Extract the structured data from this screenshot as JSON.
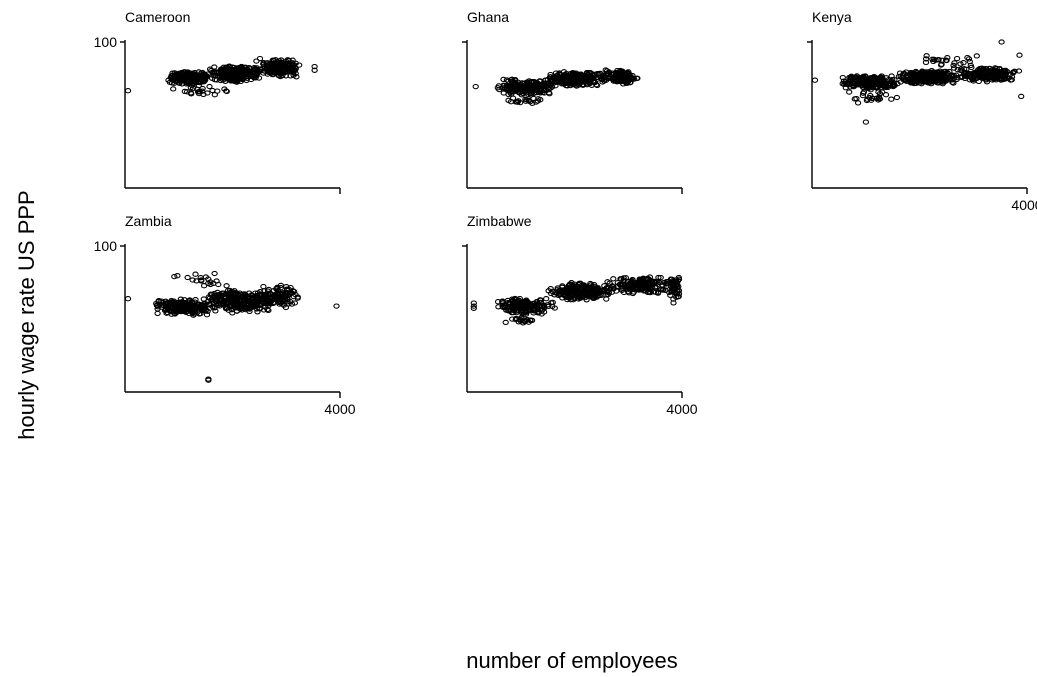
{
  "chart_data": {
    "type": "scatter",
    "xlabel": "number of employees",
    "ylabel": "hourly wage rate US PPP",
    "grid": false,
    "x_scale": "log",
    "y_scale": "log",
    "xlim": [
      1,
      4000
    ],
    "ylim": [
      1,
      100
    ],
    "panels": [
      {
        "title": "Cameroon",
        "y_tick_labels": [
          "100"
        ],
        "x_tick_labels": [],
        "outliers": [
          [
            1.1,
            21.5
          ],
          [
            1500,
            46
          ],
          [
            1500,
            41
          ]
        ],
        "clusters": [
          {
            "x": [
              5,
              30
            ],
            "y": [
              26,
              40
            ],
            "n": 220
          },
          {
            "x": [
              25,
              200
            ],
            "y": [
              28,
              48
            ],
            "n": 260
          },
          {
            "x": [
              150,
              900
            ],
            "y": [
              32,
              60
            ],
            "n": 160
          },
          {
            "x": [
              5,
              60
            ],
            "y": [
              17,
              26
            ],
            "n": 25
          }
        ]
      },
      {
        "title": "Ghana",
        "y_tick_labels": [],
        "x_tick_labels": [],
        "outliers": [
          [
            1.4,
            24.5
          ]
        ],
        "clusters": [
          {
            "x": [
              3,
              30
            ],
            "y": [
              18,
              32
            ],
            "n": 200
          },
          {
            "x": [
              20,
              200
            ],
            "y": [
              24,
              40
            ],
            "n": 240
          },
          {
            "x": [
              150,
              800
            ],
            "y": [
              26,
              42
            ],
            "n": 120
          },
          {
            "x": [
              4,
              20
            ],
            "y": [
              14,
              18
            ],
            "n": 20
          }
        ]
      },
      {
        "title": "Kenya",
        "y_tick_labels": [],
        "x_tick_labels": [
          "4000"
        ],
        "outliers": [
          [
            1.1,
            30
          ],
          [
            1500,
            100
          ],
          [
            3000,
            66
          ],
          [
            8,
            8
          ],
          [
            3200,
            18
          ]
        ],
        "clusters": [
          {
            "x": [
              3,
              30
            ],
            "y": [
              22,
              36
            ],
            "n": 220
          },
          {
            "x": [
              25,
              300
            ],
            "y": [
              26,
              42
            ],
            "n": 280
          },
          {
            "x": [
              200,
              3000
            ],
            "y": [
              28,
              46
            ],
            "n": 200
          },
          {
            "x": [
              4,
              40
            ],
            "y": [
              14,
              22
            ],
            "n": 25
          },
          {
            "x": [
              50,
              800
            ],
            "y": [
              46,
              66
            ],
            "n": 25
          }
        ]
      },
      {
        "title": "Zambia",
        "y_tick_labels": [
          "100"
        ],
        "x_tick_labels": [
          "4000"
        ],
        "outliers": [
          [
            1.1,
            19
          ],
          [
            3500,
            15
          ],
          [
            25,
            1.5
          ],
          [
            25,
            1.45
          ]
        ],
        "clusters": [
          {
            "x": [
              3,
              30
            ],
            "y": [
              11,
              19
            ],
            "n": 200
          },
          {
            "x": [
              20,
              300
            ],
            "y": [
              12,
              26
            ],
            "n": 260
          },
          {
            "x": [
              150,
              1000
            ],
            "y": [
              14,
              30
            ],
            "n": 120
          },
          {
            "x": [
              6,
              60
            ],
            "y": [
              26,
              44
            ],
            "n": 20
          }
        ]
      },
      {
        "title": "Zimbabwe",
        "y_tick_labels": [],
        "x_tick_labels": [
          "4000"
        ],
        "outliers": [
          [
            1.3,
            16.5
          ],
          [
            1.3,
            15
          ],
          [
            1.3,
            14
          ]
        ],
        "clusters": [
          {
            "x": [
              3,
              30
            ],
            "y": [
              11,
              20
            ],
            "n": 180
          },
          {
            "x": [
              20,
              300
            ],
            "y": [
              18,
              32
            ],
            "n": 240
          },
          {
            "x": [
              200,
              4000
            ],
            "y": [
              22,
              38
            ],
            "n": 200
          },
          {
            "x": [
              4,
              20
            ],
            "y": [
              8,
              11
            ],
            "n": 20
          },
          {
            "x": [
              2500,
              4000
            ],
            "y": [
              16,
              40
            ],
            "n": 30
          }
        ]
      }
    ]
  }
}
